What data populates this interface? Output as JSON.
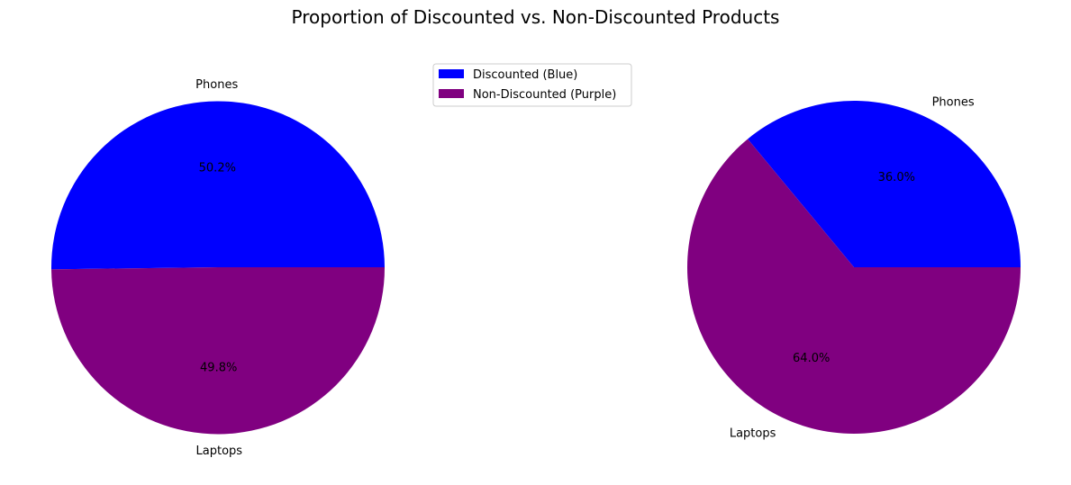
{
  "chart_title": "Proportion of Discounted vs. Non-Discounted Products",
  "legend": {
    "placement": "upper-center",
    "entries": [
      {
        "label": "Discounted (Blue)",
        "color": "#0000ff"
      },
      {
        "label": "Non-Discounted (Purple)",
        "color": "#800080"
      }
    ]
  },
  "chart_data": [
    {
      "type": "pie",
      "categories": [
        "Phones",
        "Laptops"
      ],
      "values": [
        50.2,
        49.8
      ],
      "value_labels": [
        "50.2%",
        "49.8%"
      ],
      "colors": [
        "#0000ff",
        "#800080"
      ],
      "start_angle_deg": 0,
      "counterclockwise": true
    },
    {
      "type": "pie",
      "categories": [
        "Phones",
        "Laptops"
      ],
      "values": [
        36.0,
        64.0
      ],
      "value_labels": [
        "36.0%",
        "64.0%"
      ],
      "colors": [
        "#0000ff",
        "#800080"
      ],
      "start_angle_deg": 0,
      "counterclockwise": true
    }
  ]
}
